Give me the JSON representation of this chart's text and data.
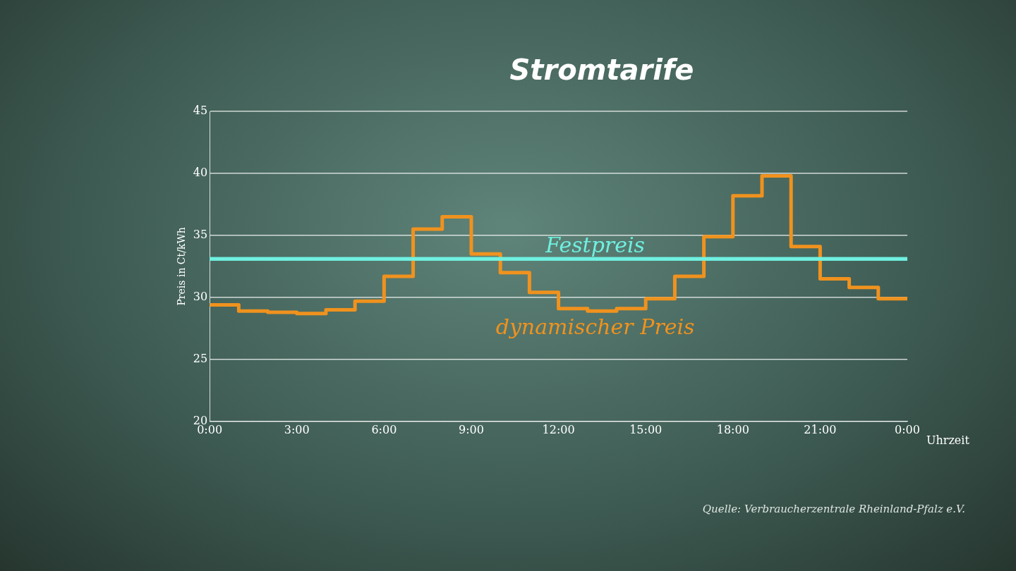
{
  "chart_data": {
    "type": "step",
    "title": "Stromtarife",
    "xlabel": "Uhrzeit",
    "ylabel": "Preis in Ct/kWh",
    "x": [
      0,
      1,
      2,
      3,
      4,
      5,
      6,
      7,
      8,
      9,
      10,
      11,
      12,
      13,
      14,
      15,
      16,
      17,
      18,
      19,
      20,
      21,
      22,
      23,
      24
    ],
    "series": [
      {
        "name": "dynamischer Preis",
        "color": "#f0921e",
        "values": [
          29.4,
          28.9,
          28.8,
          28.7,
          29.0,
          29.7,
          31.7,
          35.5,
          36.5,
          33.5,
          32.0,
          30.4,
          29.1,
          28.9,
          29.1,
          29.9,
          31.7,
          34.9,
          38.2,
          39.8,
          34.1,
          31.5,
          30.8,
          29.9,
          29.9
        ]
      }
    ],
    "ref_lines": [
      {
        "axis": "y",
        "value": 33.1,
        "label": "Festpreis",
        "color": "#6ff0e0"
      }
    ],
    "xlim": [
      0,
      24
    ],
    "xticks": [
      {
        "value": 0,
        "label": "0:00"
      },
      {
        "value": 3,
        "label": "3:00"
      },
      {
        "value": 6,
        "label": "6:00"
      },
      {
        "value": 9,
        "label": "9:00"
      },
      {
        "value": 12,
        "label": "12:00"
      },
      {
        "value": 15,
        "label": "15:00"
      },
      {
        "value": 18,
        "label": "18:00"
      },
      {
        "value": 21,
        "label": "21:00"
      },
      {
        "value": 24,
        "label": "0:00"
      }
    ],
    "ylim": [
      20,
      45
    ],
    "yticks": [
      20,
      25,
      30,
      35,
      40,
      45
    ],
    "grid": "y",
    "legend": false,
    "annotations": [
      "Quelle: Verbraucherzentrale Rheinland-Pfalz e.V."
    ]
  }
}
